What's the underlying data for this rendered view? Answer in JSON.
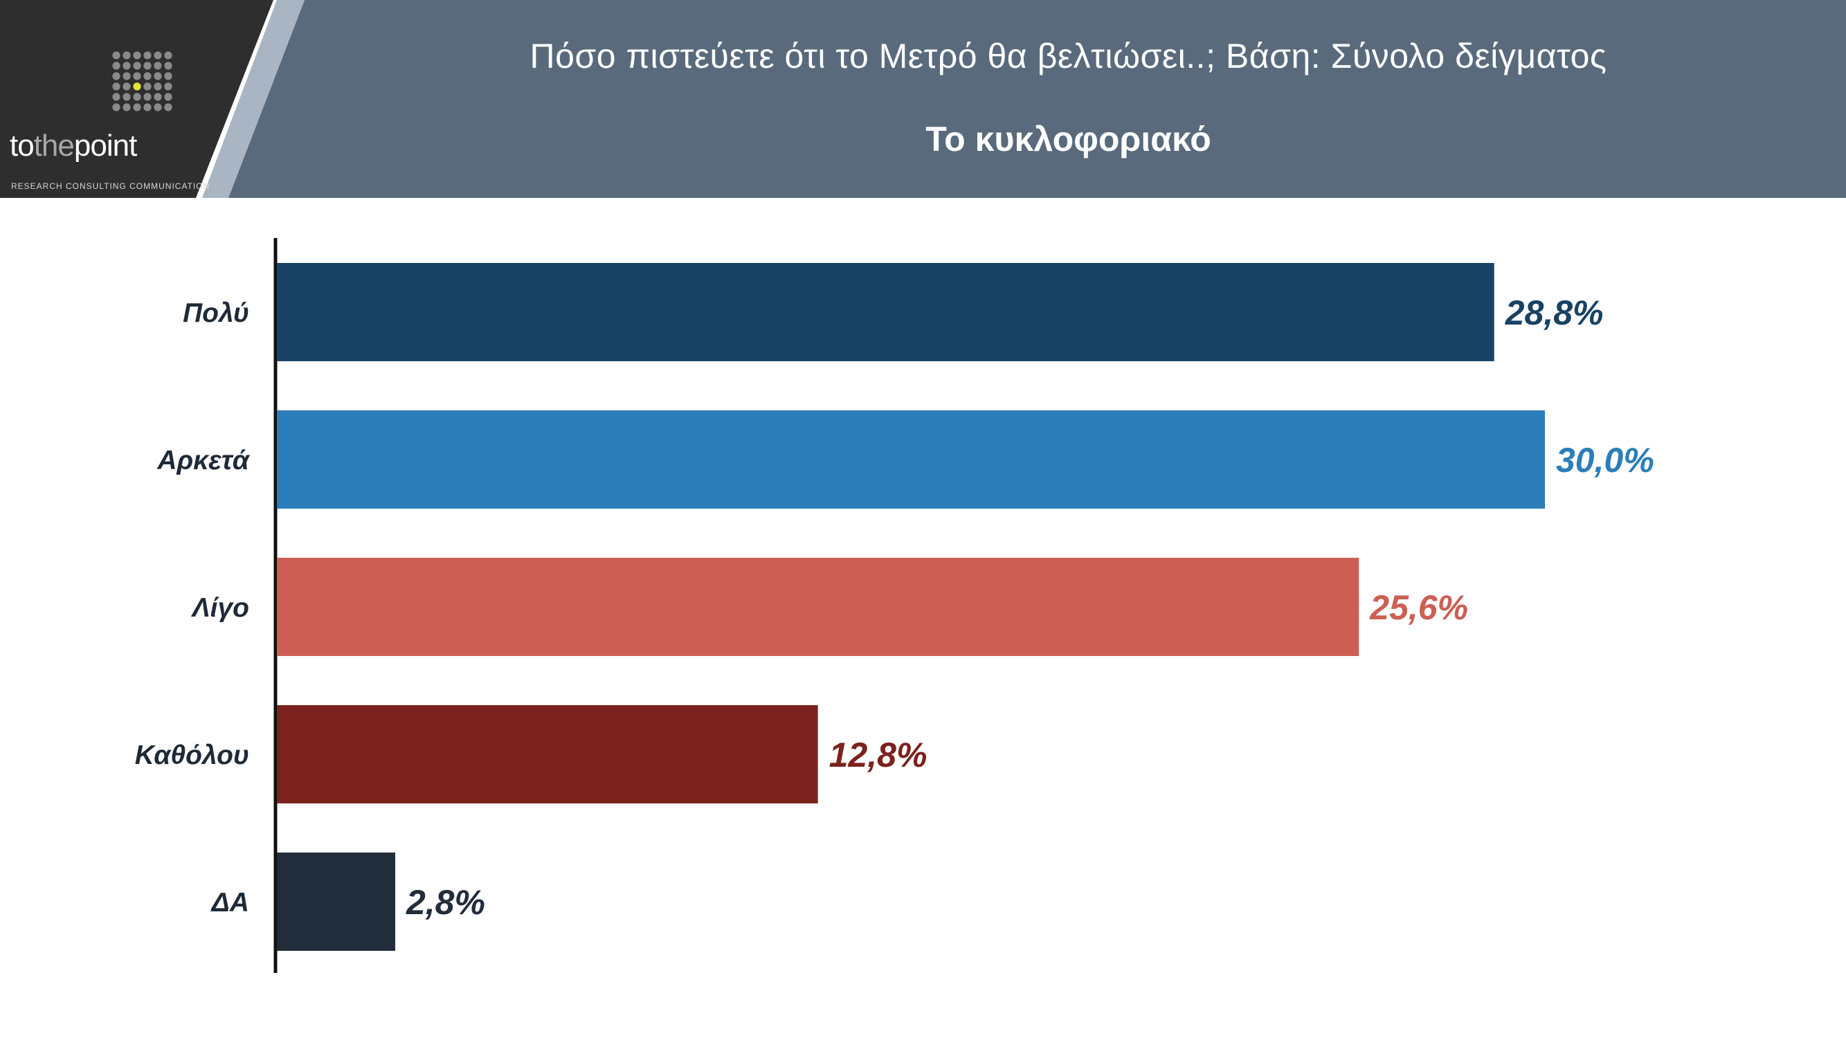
{
  "header": {
    "title": "Πόσο πιστεύετε ότι το Μετρό θα βελτιώσει..; Βάση: Σύνολο δείγματος",
    "subtitle": "Το κυκλοφοριακό",
    "background_color": "#596a7c",
    "logo": {
      "word_part1": "to",
      "word_part2": "the",
      "word_part3": "point",
      "tagline": "RESEARCH  CONSULTING  COMMUNICATION",
      "dot_icon": "dot-grid-logo-icon",
      "accent_color": "#e6e33a"
    }
  },
  "chart_data": {
    "type": "bar",
    "orientation": "horizontal",
    "categories": [
      "Πολύ",
      "Αρκετά",
      "Λίγο",
      "Καθόλου",
      "ΔΑ"
    ],
    "values": [
      28.8,
      30.0,
      25.6,
      12.8,
      2.8
    ],
    "value_labels": [
      "28,8%",
      "30,0%",
      "25,6%",
      "12,8%",
      "2,8%"
    ],
    "colors": [
      "#184263",
      "#2b7eb9",
      "#cc5f54",
      "#7b221e",
      "#212d3b"
    ],
    "xlim": [
      0,
      30
    ],
    "grid": false,
    "legend": "none"
  }
}
